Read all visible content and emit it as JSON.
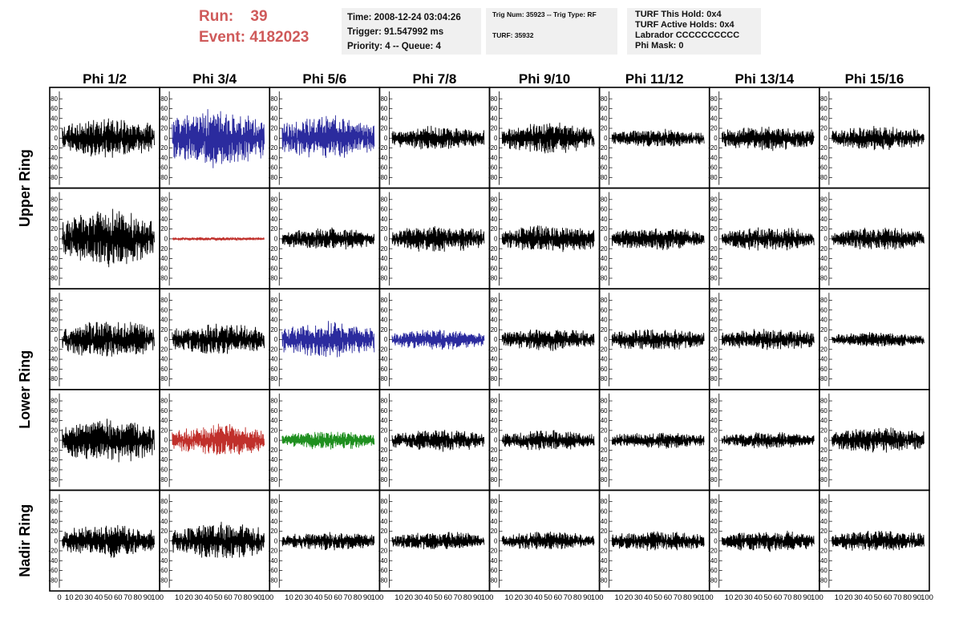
{
  "header": {
    "run_label": "Run:",
    "run_value": "39",
    "event_label": "Event:",
    "event_value": "4182023"
  },
  "info_time": {
    "time": "Time: 2008-12-24 03:04:26",
    "trigger": "Trigger: 91.547992 ms",
    "priority": "Priority: 4 -- Queue: 4"
  },
  "info_trig": {
    "trig_line": "Trig Num: 35923 -- Trig Type: RF",
    "turf_line": "TURF: 35932"
  },
  "info_turf": {
    "this_hold": "TURF This Hold: 0x4",
    "active_holds": "TURF Active Holds: 0x4",
    "labrador": "Labrador CCCCCCCCCC",
    "phi_mask": "Phi Mask: 0"
  },
  "colors": {
    "black": "#000000",
    "blue": "#2b2b9e",
    "red": "#c0302b",
    "green": "#1f8f1f"
  },
  "chart_data": {
    "type": "line",
    "title": "",
    "columns": [
      "Phi 1/2",
      "Phi 3/4",
      "Phi 5/6",
      "Phi 7/8",
      "Phi 9/10",
      "Phi 11/12",
      "Phi 13/14",
      "Phi 15/16"
    ],
    "row_group_labels": [
      "Upper Ring",
      "Lower Ring",
      "Nadir Ring"
    ],
    "rows": 5,
    "xlim": [
      0,
      100
    ],
    "ylim": [
      -95,
      95
    ],
    "x_ticks": [
      0,
      10,
      20,
      30,
      40,
      50,
      60,
      70,
      80,
      90,
      100
    ],
    "y_ticks": [
      -80,
      -60,
      -40,
      -20,
      0,
      20,
      40,
      60,
      80
    ],
    "panel_colors": [
      [
        "black",
        "blue",
        "blue",
        "black",
        "black",
        "black",
        "black",
        "black"
      ],
      [
        "black",
        "red",
        "black",
        "black",
        "black",
        "black",
        "black",
        "black"
      ],
      [
        "black",
        "black",
        "blue",
        "blue",
        "black",
        "black",
        "black",
        "black"
      ],
      [
        "black",
        "red",
        "green",
        "black",
        "black",
        "black",
        "black",
        "black"
      ],
      [
        "black",
        "black",
        "black",
        "black",
        "black",
        "black",
        "black",
        "black"
      ]
    ],
    "panel_amplitudes": [
      [
        22,
        32,
        24,
        13,
        17,
        10,
        14,
        13
      ],
      [
        32,
        2,
        12,
        15,
        15,
        12,
        13,
        13
      ],
      [
        21,
        18,
        20,
        11,
        12,
        12,
        12,
        8
      ],
      [
        24,
        18,
        10,
        12,
        11,
        9,
        9,
        14
      ],
      [
        18,
        20,
        10,
        10,
        10,
        11,
        12,
        12
      ]
    ],
    "samples_per_trace": 260
  }
}
